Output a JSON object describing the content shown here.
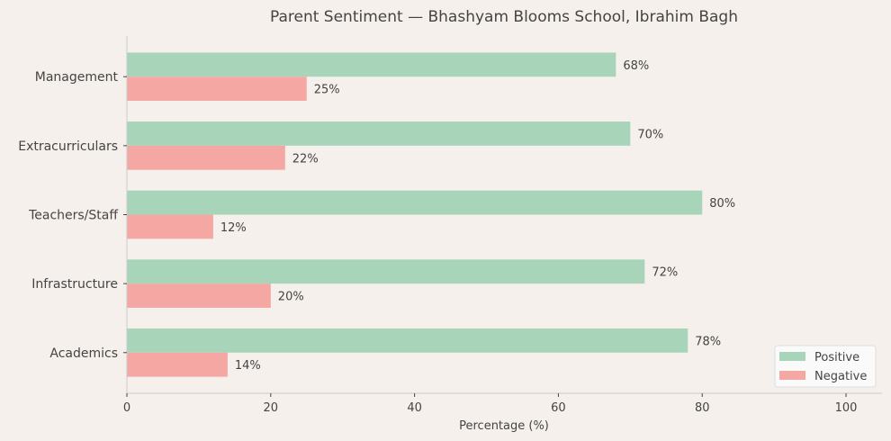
{
  "chart_data": {
    "type": "bar",
    "orientation": "horizontal",
    "title": "Parent Sentiment — Bhashyam Blooms School, Ibrahim Bagh",
    "xlabel": "Percentage (%)",
    "ylabel": "",
    "categories": [
      "Academics",
      "Infrastructure",
      "Teachers/Staff",
      "Extracurriculars",
      "Management"
    ],
    "series": [
      {
        "name": "Positive",
        "color": "#a8d5ba",
        "values": [
          78,
          72,
          80,
          70,
          68
        ]
      },
      {
        "name": "Negative",
        "color": "#f5a7a3",
        "values": [
          14,
          20,
          12,
          22,
          25
        ]
      }
    ],
    "value_suffix": "%",
    "xlim": [
      0,
      105
    ],
    "xticks": [
      0,
      20,
      40,
      60,
      80,
      100
    ],
    "grid": false,
    "legend": "bottom-right",
    "background": "#f5f0eb"
  }
}
